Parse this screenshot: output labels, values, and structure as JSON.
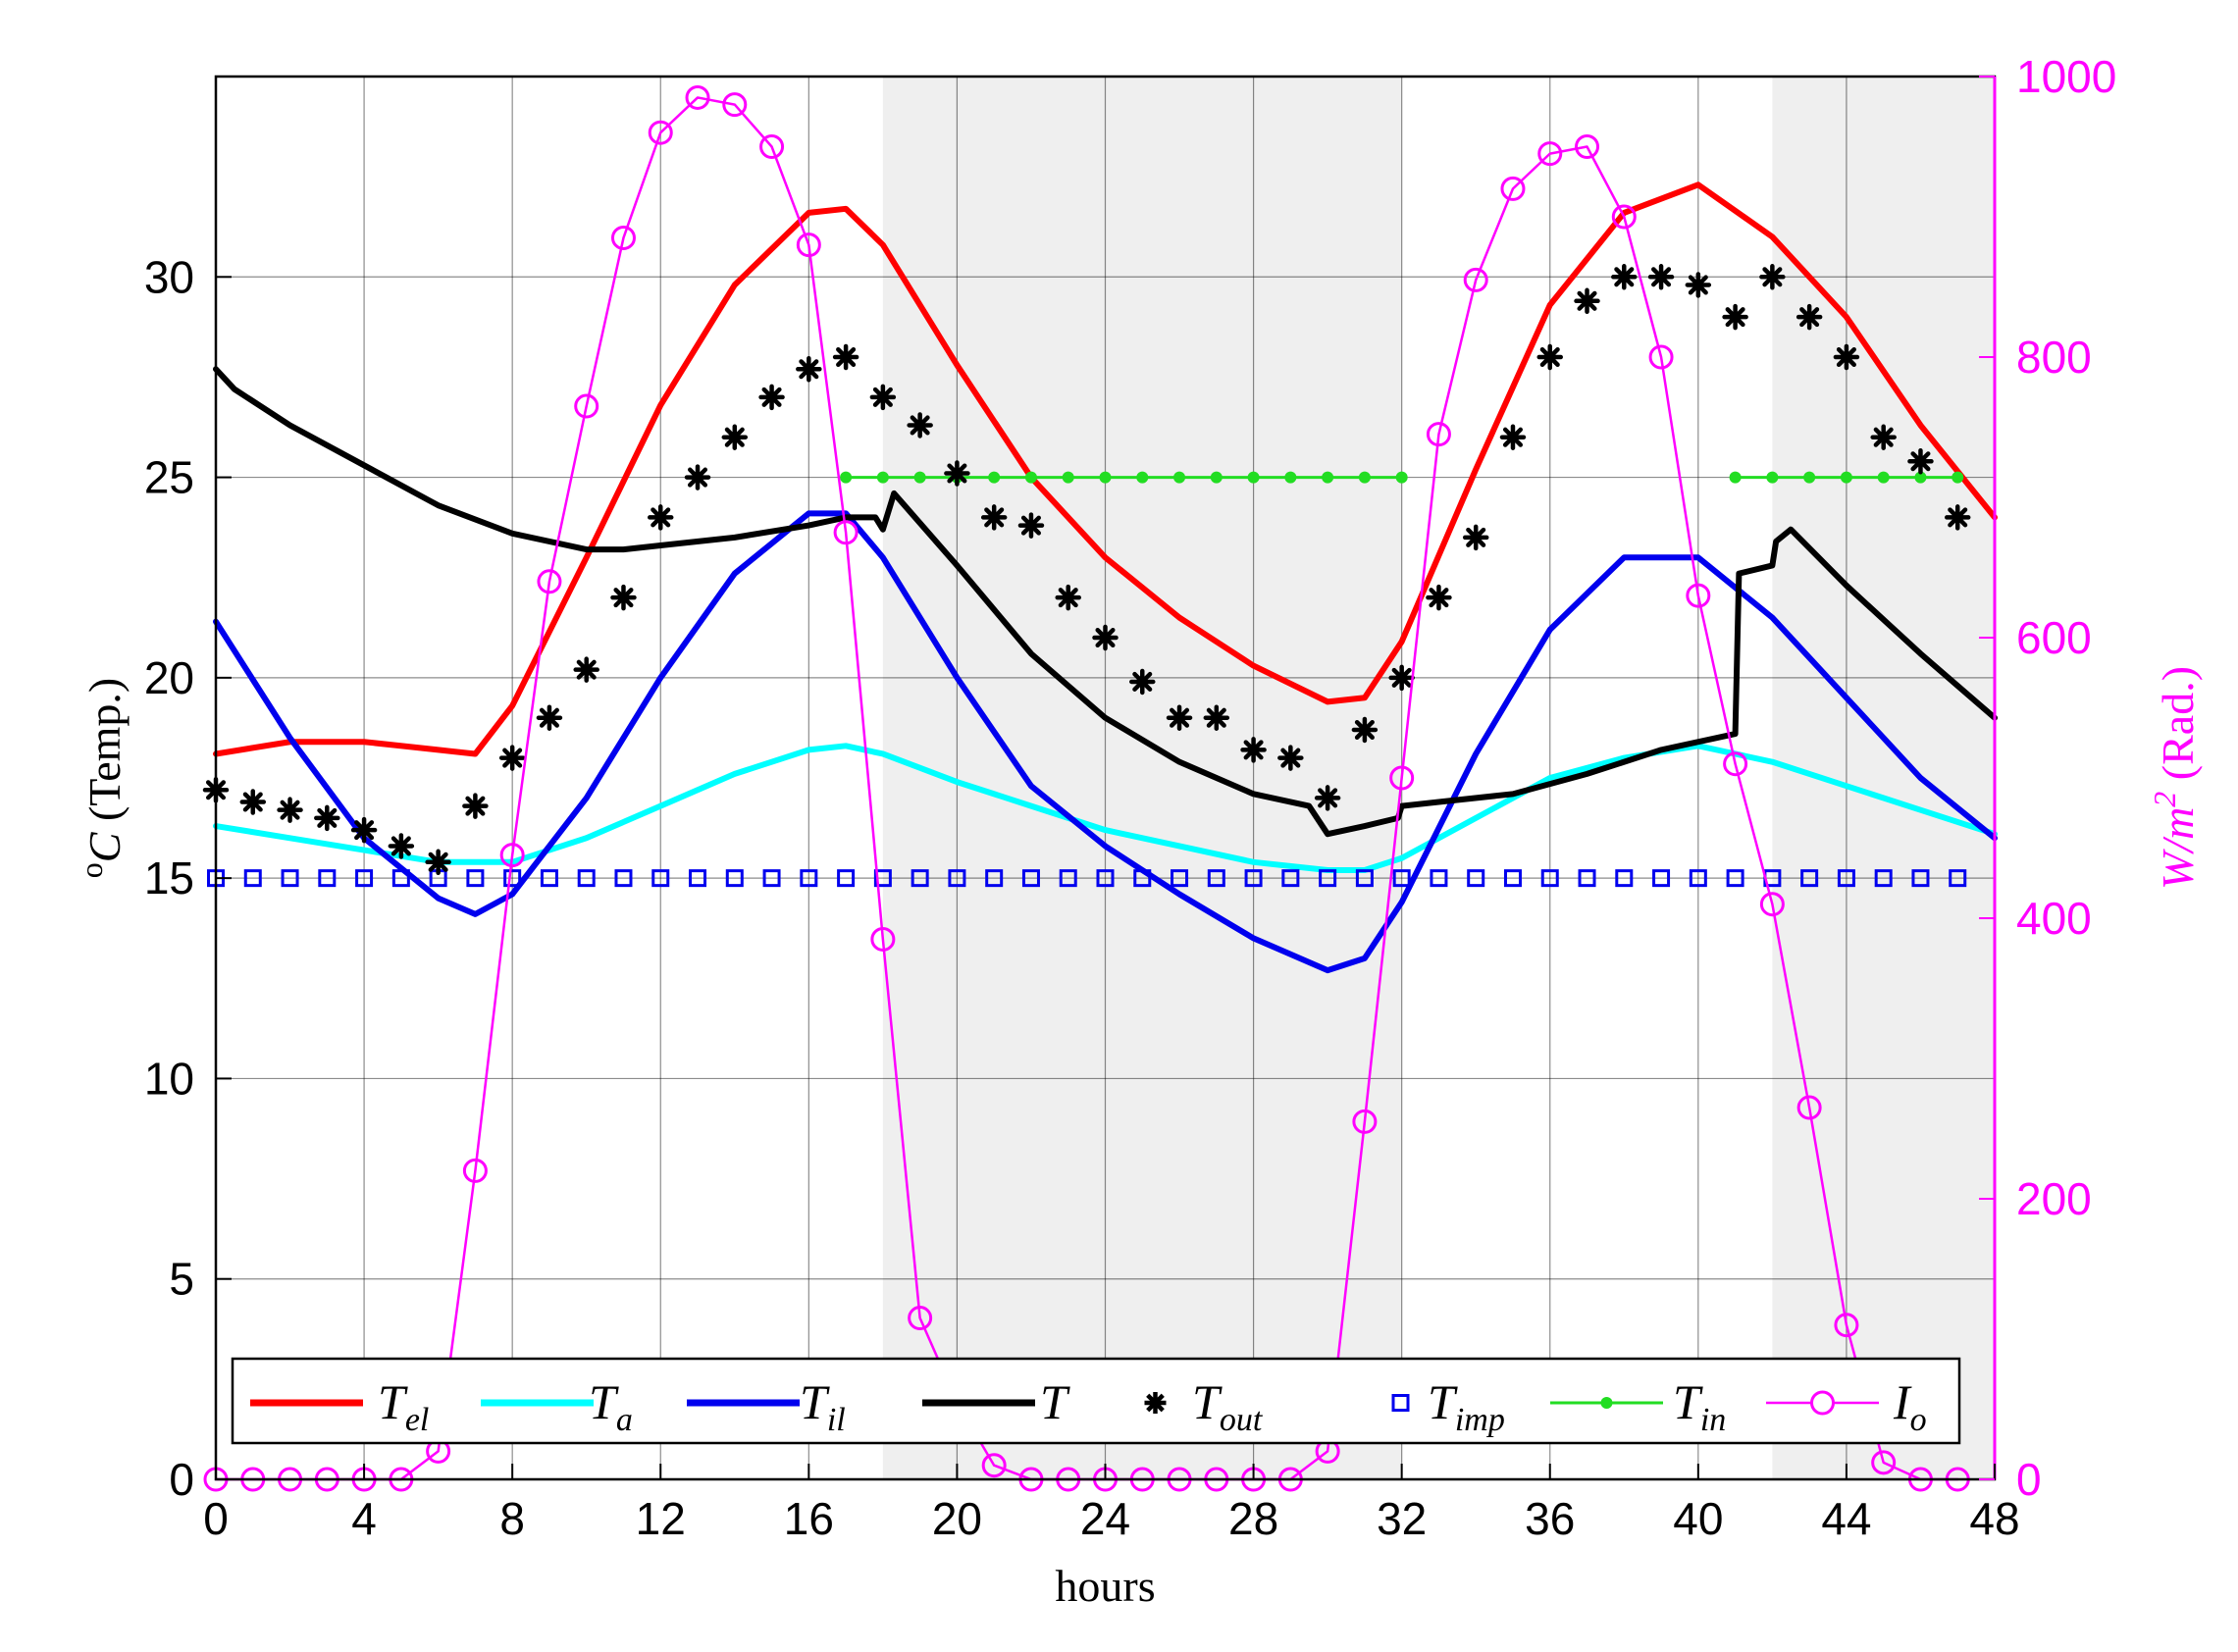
{
  "chart_data": {
    "type": "line",
    "xlabel": "hours",
    "ylabel_left": {
      "symbol": "o",
      "base": "C",
      "text": " (Temp.)"
    },
    "ylabel_right": {
      "base": "W/m",
      "sup": "2",
      "text": " (Rad.)"
    },
    "xlim": [
      0,
      48
    ],
    "ylim_left": [
      0,
      35
    ],
    "ylim_right": [
      0,
      1000
    ],
    "x_ticks": [
      0,
      4,
      8,
      12,
      16,
      20,
      24,
      28,
      32,
      36,
      40,
      44,
      48
    ],
    "y_ticks_left": [
      0,
      5,
      10,
      15,
      20,
      25,
      30
    ],
    "y_ticks_right": [
      0,
      200,
      400,
      600,
      800,
      1000
    ],
    "grid": true,
    "legend_position": "bottom",
    "shaded_intervals": [
      [
        18,
        32
      ],
      [
        42,
        48
      ]
    ],
    "colors": {
      "shade": "#efefef",
      "right_axis": "#ff00ff"
    },
    "series": [
      {
        "name": "T",
        "sub": "el",
        "axis": "left",
        "color": "#ff0000",
        "style": "line",
        "width": 6,
        "x": [
          0,
          2,
          4,
          6,
          7,
          8,
          10,
          12,
          14,
          16,
          17,
          18,
          20,
          22,
          24,
          26,
          28,
          30,
          31,
          32,
          34,
          36,
          38,
          40,
          42,
          44,
          46,
          48
        ],
        "y": [
          18.1,
          18.4,
          18.4,
          18.2,
          18.1,
          19.3,
          23.0,
          26.8,
          29.8,
          31.6,
          31.7,
          30.8,
          27.8,
          25.0,
          23.0,
          21.5,
          20.3,
          19.4,
          19.5,
          20.9,
          25.2,
          29.3,
          31.6,
          32.3,
          31.0,
          29.0,
          26.3,
          24.0
        ]
      },
      {
        "name": "T",
        "sub": "a",
        "axis": "left",
        "color": "#00ffff",
        "style": "line",
        "width": 6,
        "x": [
          0,
          2,
          4,
          6,
          8,
          10,
          12,
          14,
          16,
          17,
          18,
          20,
          22,
          24,
          26,
          28,
          30,
          31,
          32,
          34,
          36,
          38,
          40,
          42,
          44,
          46,
          48
        ],
        "y": [
          16.3,
          16.0,
          15.7,
          15.4,
          15.4,
          16.0,
          16.8,
          17.6,
          18.2,
          18.3,
          18.1,
          17.4,
          16.8,
          16.2,
          15.8,
          15.4,
          15.2,
          15.2,
          15.5,
          16.5,
          17.5,
          18.0,
          18.3,
          17.9,
          17.3,
          16.7,
          16.1
        ]
      },
      {
        "name": "T",
        "sub": "il",
        "axis": "left",
        "color": "#0000ee",
        "style": "line",
        "width": 6,
        "x": [
          0,
          2,
          4,
          6,
          7,
          8,
          10,
          12,
          14,
          16,
          17,
          18,
          20,
          22,
          24,
          26,
          28,
          30,
          31,
          32,
          34,
          36,
          38,
          40,
          42,
          44,
          46,
          48
        ],
        "y": [
          21.4,
          18.5,
          16.0,
          14.5,
          14.1,
          14.6,
          17.0,
          20.0,
          22.6,
          24.1,
          24.1,
          23.0,
          20.0,
          17.3,
          15.8,
          14.6,
          13.5,
          12.7,
          13.0,
          14.4,
          18.1,
          21.2,
          23.0,
          23.0,
          21.5,
          19.5,
          17.5,
          16.0
        ]
      },
      {
        "name": "T",
        "sub": "",
        "axis": "left",
        "color": "#000000",
        "style": "line",
        "width": 6,
        "x": [
          0,
          0.5,
          2,
          4,
          6,
          8,
          10,
          11,
          12,
          14,
          16,
          17,
          17.8,
          18.0,
          18.3,
          20,
          22,
          24,
          26,
          28,
          29.5,
          30,
          31,
          31.9,
          32.0,
          33,
          35,
          37,
          39,
          41,
          41.1,
          42,
          42.1,
          42.5,
          44,
          46,
          48
        ],
        "y": [
          27.7,
          27.2,
          26.3,
          25.3,
          24.3,
          23.6,
          23.2,
          23.2,
          23.3,
          23.5,
          23.8,
          24.0,
          24.0,
          23.7,
          24.6,
          22.8,
          20.6,
          19.0,
          17.9,
          17.1,
          16.8,
          16.1,
          16.3,
          16.5,
          16.8,
          16.9,
          17.1,
          17.6,
          18.2,
          18.6,
          22.6,
          22.8,
          23.4,
          23.7,
          22.3,
          20.6,
          19.0
        ]
      },
      {
        "name": "T",
        "sub": "out",
        "axis": "left",
        "color": "#000000",
        "style": "star",
        "x": [
          0,
          1,
          2,
          3,
          4,
          5,
          6,
          7,
          8,
          9,
          10,
          11,
          12,
          13,
          14,
          15,
          16,
          17,
          18,
          19,
          20,
          21,
          22,
          23,
          24,
          25,
          26,
          27,
          28,
          29,
          30,
          31,
          32,
          33,
          34,
          35,
          36,
          37,
          38,
          39,
          40,
          41,
          42,
          43,
          44,
          45,
          46,
          47
        ],
        "y": [
          17.2,
          16.9,
          16.7,
          16.5,
          16.2,
          15.8,
          15.4,
          16.8,
          18.0,
          19.0,
          20.2,
          22.0,
          24.0,
          25.0,
          26.0,
          27.0,
          27.7,
          28.0,
          27.0,
          26.3,
          25.1,
          24.0,
          23.8,
          22.0,
          21.0,
          19.9,
          19.0,
          19.0,
          18.2,
          18.0,
          17.0,
          18.7,
          20.0,
          22.0,
          23.5,
          26.0,
          28.0,
          29.4,
          30.0,
          30.0,
          29.8,
          29.0,
          30.0,
          29.0,
          28.0,
          26.0,
          25.4,
          24.0
        ]
      },
      {
        "name": "T",
        "sub": "imp",
        "axis": "left",
        "color": "#0000ee",
        "style": "square",
        "x": [
          0,
          1,
          2,
          3,
          4,
          5,
          6,
          7,
          8,
          9,
          10,
          11,
          12,
          13,
          14,
          15,
          16,
          17,
          18,
          19,
          20,
          21,
          22,
          23,
          24,
          25,
          26,
          27,
          28,
          29,
          30,
          31,
          32,
          33,
          34,
          35,
          36,
          37,
          38,
          39,
          40,
          41,
          42,
          43,
          44,
          45,
          46,
          47
        ],
        "y": [
          15,
          15,
          15,
          15,
          15,
          15,
          15,
          15,
          15,
          15,
          15,
          15,
          15,
          15,
          15,
          15,
          15,
          15,
          15,
          15,
          15,
          15,
          15,
          15,
          15,
          15,
          15,
          15,
          15,
          15,
          15,
          15,
          15,
          15,
          15,
          15,
          15,
          15,
          15,
          15,
          15,
          15,
          15,
          15,
          15,
          15,
          15,
          15
        ]
      },
      {
        "name": "T",
        "sub": "in",
        "axis": "left",
        "color": "#22dd22",
        "style": "dotline",
        "segments": [
          {
            "x": [
              17,
              18,
              19,
              20,
              21,
              22,
              23,
              24,
              25,
              26,
              27,
              28,
              29,
              30,
              31,
              32
            ],
            "y": [
              25,
              25,
              25,
              25,
              25,
              25,
              25,
              25,
              25,
              25,
              25,
              25,
              25,
              25,
              25,
              25
            ]
          },
          {
            "x": [
              41,
              42,
              43,
              44,
              45,
              46,
              47
            ],
            "y": [
              25,
              25,
              25,
              25,
              25,
              25,
              25
            ]
          }
        ]
      },
      {
        "name": "I",
        "sub": "o",
        "axis": "right",
        "color": "#ff00ff",
        "style": "circleline",
        "x": [
          0,
          1,
          2,
          3,
          4,
          5,
          6,
          7,
          8,
          9,
          10,
          11,
          12,
          13,
          14,
          15,
          16,
          17,
          18,
          19,
          20,
          21,
          22,
          23,
          24,
          25,
          26,
          27,
          28,
          29,
          30,
          31,
          32,
          33,
          34,
          35,
          36,
          37,
          38,
          39,
          40,
          41,
          42,
          43,
          44,
          45,
          46,
          47
        ],
        "y": [
          0,
          0,
          0,
          0,
          0,
          0,
          20,
          220,
          445,
          640,
          765,
          885,
          960,
          985,
          980,
          950,
          880,
          675,
          385,
          115,
          55,
          10,
          0,
          0,
          0,
          0,
          0,
          0,
          0,
          0,
          20,
          255,
          500,
          745,
          855,
          920,
          945,
          950,
          900,
          800,
          630,
          510,
          410,
          265,
          110,
          12,
          0,
          0
        ]
      }
    ]
  }
}
